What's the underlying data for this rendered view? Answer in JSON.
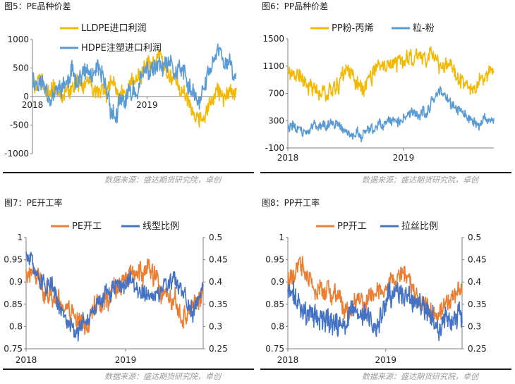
{
  "source_text": "数据来源：盛达期货研究院，卓创",
  "chart_data": [
    {
      "id": "c5",
      "type": "line",
      "title": "图5：PE品种价差",
      "y_left": {
        "min": -1000,
        "max": 1000,
        "ticks": [
          1000,
          500,
          0,
          -500,
          -1000
        ]
      },
      "x_labels": [
        "2018",
        "2019"
      ],
      "x_range": [
        2018.0,
        2019.78
      ],
      "series": [
        {
          "name": "LLDPE进口利润",
          "color": "#F5B800",
          "axis": "left",
          "base": 180,
          "amp": 170,
          "noise": 120,
          "seed": 5,
          "n": 430,
          "keys": [
            [
              2018.0,
              300
            ],
            [
              2018.25,
              130
            ],
            [
              2018.5,
              250
            ],
            [
              2018.75,
              50
            ],
            [
              2018.95,
              320
            ],
            [
              2019.1,
              600
            ],
            [
              2019.25,
              300
            ],
            [
              2019.45,
              -380
            ],
            [
              2019.6,
              80
            ],
            [
              2019.78,
              -60
            ]
          ]
        },
        {
          "name": "HDPE注塑进口利润",
          "color": "#5B9BD5",
          "axis": "left",
          "base": 200,
          "amp": 180,
          "noise": 140,
          "seed": 11,
          "n": 430,
          "keys": [
            [
              2018.0,
              350
            ],
            [
              2018.2,
              40
            ],
            [
              2018.4,
              420
            ],
            [
              2018.6,
              280
            ],
            [
              2018.72,
              -350
            ],
            [
              2018.9,
              150
            ],
            [
              2019.05,
              500
            ],
            [
              2019.3,
              400
            ],
            [
              2019.45,
              -200
            ],
            [
              2019.62,
              900
            ],
            [
              2019.78,
              300
            ]
          ]
        }
      ]
    },
    {
      "id": "c6",
      "type": "line",
      "title": "图6：PP品种价差",
      "y_left": {
        "min": -100,
        "max": 1500,
        "ticks": [
          1500,
          1100,
          700,
          300,
          -100
        ]
      },
      "x_labels": [
        "2018",
        "2019"
      ],
      "x_range": [
        2018.0,
        2019.78
      ],
      "series": [
        {
          "name": "PP粉-丙烯",
          "color": "#F5B800",
          "axis": "left",
          "base": 900,
          "amp": 120,
          "noise": 90,
          "seed": 21,
          "n": 430,
          "keys": [
            [
              2018.0,
              1100
            ],
            [
              2018.15,
              850
            ],
            [
              2018.35,
              750
            ],
            [
              2018.5,
              1000
            ],
            [
              2018.65,
              800
            ],
            [
              2018.8,
              1050
            ],
            [
              2019.0,
              1200
            ],
            [
              2019.2,
              1300
            ],
            [
              2019.35,
              1150
            ],
            [
              2019.55,
              750
            ],
            [
              2019.78,
              1050
            ]
          ]
        },
        {
          "name": "粒-粉",
          "color": "#5B9BD5",
          "axis": "left",
          "base": 250,
          "amp": 80,
          "noise": 60,
          "seed": 31,
          "n": 430,
          "keys": [
            [
              2018.0,
              250
            ],
            [
              2018.15,
              120
            ],
            [
              2018.3,
              300
            ],
            [
              2018.5,
              150
            ],
            [
              2018.65,
              50
            ],
            [
              2018.8,
              200
            ],
            [
              2019.0,
              350
            ],
            [
              2019.2,
              450
            ],
            [
              2019.3,
              800
            ],
            [
              2019.45,
              450
            ],
            [
              2019.6,
              280
            ],
            [
              2019.78,
              280
            ]
          ]
        }
      ]
    },
    {
      "id": "c7",
      "type": "line",
      "title": "图7：PE开工率",
      "y_left": {
        "min": 0.75,
        "max": 1.0,
        "ticks": [
          "1",
          "0.95",
          "0.9",
          "0.85",
          "0.8",
          "0.75"
        ]
      },
      "y_right": {
        "min": 0.25,
        "max": 0.5,
        "ticks": [
          "0.5",
          "0.45",
          "0.4",
          "0.35",
          "0.3",
          "0.25"
        ]
      },
      "x_labels": [
        "2018",
        "2019"
      ],
      "x_range": [
        2018.0,
        2019.78
      ],
      "series": [
        {
          "name": "PE开工",
          "color": "#ED7D31",
          "axis": "left",
          "base": 0.88,
          "amp": 0.025,
          "noise": 0.018,
          "seed": 41,
          "n": 430,
          "keys": [
            [
              2018.0,
              0.915
            ],
            [
              2018.2,
              0.885
            ],
            [
              2018.4,
              0.85
            ],
            [
              2018.6,
              0.81
            ],
            [
              2018.8,
              0.87
            ],
            [
              2019.0,
              0.9
            ],
            [
              2019.2,
              0.93
            ],
            [
              2019.4,
              0.86
            ],
            [
              2019.55,
              0.82
            ],
            [
              2019.78,
              0.87
            ]
          ]
        },
        {
          "name": "线型比例",
          "color": "#4472C4",
          "axis": "right",
          "base": 0.36,
          "amp": 0.02,
          "noise": 0.015,
          "seed": 51,
          "n": 430,
          "keys": [
            [
              2018.0,
              0.46
            ],
            [
              2018.1,
              0.42
            ],
            [
              2018.25,
              0.38
            ],
            [
              2018.4,
              0.31
            ],
            [
              2018.55,
              0.3
            ],
            [
              2018.7,
              0.34
            ],
            [
              2018.9,
              0.4
            ],
            [
              2019.1,
              0.39
            ],
            [
              2019.3,
              0.36
            ],
            [
              2019.5,
              0.4
            ],
            [
              2019.65,
              0.33
            ],
            [
              2019.78,
              0.38
            ]
          ]
        }
      ]
    },
    {
      "id": "c8",
      "type": "line",
      "title": "图8：PP开工率",
      "y_left": {
        "min": 0.75,
        "max": 1.0,
        "ticks": [
          "1",
          "0.95",
          "0.9",
          "0.85",
          "0.8",
          "0.75"
        ]
      },
      "y_right": {
        "min": 0.25,
        "max": 0.5,
        "ticks": [
          "0.5",
          "0.45",
          "0.4",
          "0.35",
          "0.3",
          "0.25"
        ]
      },
      "x_labels": [
        "2018",
        "2019"
      ],
      "x_range": [
        2018.0,
        2019.78
      ],
      "series": [
        {
          "name": "PP开工",
          "color": "#ED7D31",
          "axis": "left",
          "base": 0.88,
          "amp": 0.025,
          "noise": 0.016,
          "seed": 61,
          "n": 430,
          "keys": [
            [
              2018.0,
              0.91
            ],
            [
              2018.15,
              0.93
            ],
            [
              2018.3,
              0.87
            ],
            [
              2018.5,
              0.87
            ],
            [
              2018.65,
              0.82
            ],
            [
              2018.85,
              0.87
            ],
            [
              2019.05,
              0.9
            ],
            [
              2019.2,
              0.93
            ],
            [
              2019.35,
              0.85
            ],
            [
              2019.5,
              0.82
            ],
            [
              2019.65,
              0.86
            ],
            [
              2019.78,
              0.88
            ]
          ]
        },
        {
          "name": "拉丝比例",
          "color": "#4472C4",
          "axis": "right",
          "base": 0.33,
          "amp": 0.025,
          "noise": 0.02,
          "seed": 71,
          "n": 430,
          "keys": [
            [
              2018.0,
              0.38
            ],
            [
              2018.15,
              0.34
            ],
            [
              2018.3,
              0.32
            ],
            [
              2018.5,
              0.3
            ],
            [
              2018.7,
              0.33
            ],
            [
              2018.9,
              0.3
            ],
            [
              2019.05,
              0.36
            ],
            [
              2019.2,
              0.37
            ],
            [
              2019.35,
              0.34
            ],
            [
              2019.5,
              0.3
            ],
            [
              2019.65,
              0.32
            ],
            [
              2019.78,
              0.32
            ]
          ]
        }
      ]
    }
  ]
}
